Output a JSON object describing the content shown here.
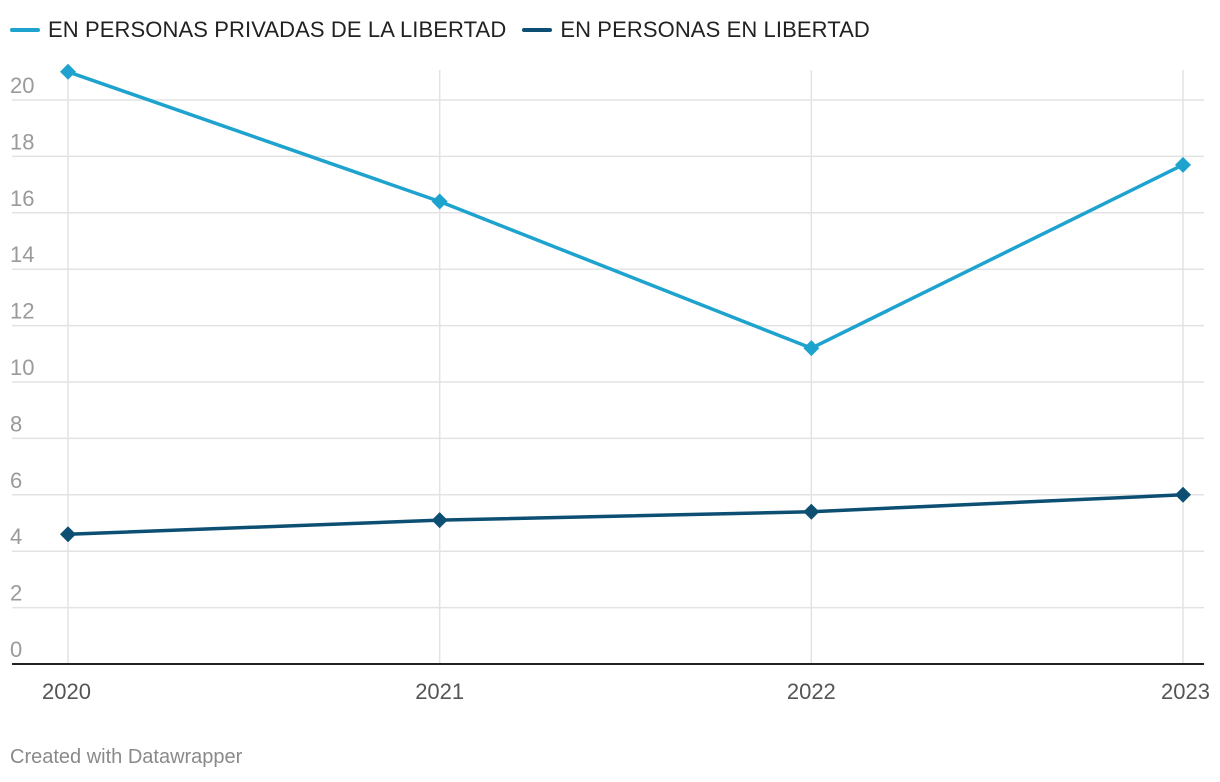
{
  "chart_data": {
    "type": "line",
    "x": [
      "2020",
      "2021",
      "2022",
      "2023"
    ],
    "series": [
      {
        "name": "EN PERSONAS PRIVADAS DE LA LIBERTAD",
        "color": "#1ea3cf",
        "values": [
          21.0,
          16.4,
          11.2,
          17.7
        ]
      },
      {
        "name": "EN PERSONAS EN LIBERTAD",
        "color": "#0c4f73",
        "values": [
          4.6,
          5.1,
          5.4,
          6.0
        ]
      }
    ],
    "yticks": [
      0,
      2,
      4,
      6,
      8,
      10,
      12,
      14,
      16,
      18,
      20
    ],
    "ylim": [
      0,
      21
    ],
    "grid": true,
    "legend_position": "top-left",
    "marker": "diamond"
  },
  "footer": {
    "credit": "Created with Datawrapper"
  }
}
